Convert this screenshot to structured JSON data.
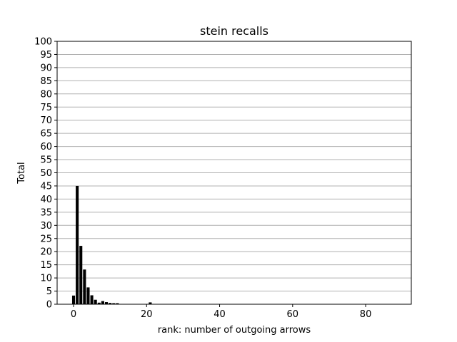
{
  "chart_data": {
    "type": "bar",
    "title": "stein recalls",
    "xlabel": "rank: number of outgoing arrows",
    "ylabel": "Total",
    "xlim": [
      -4.5,
      92.5
    ],
    "ylim": [
      0,
      100
    ],
    "xticks": [
      0,
      20,
      40,
      60,
      80
    ],
    "yticks": [
      0,
      5,
      10,
      15,
      20,
      25,
      30,
      35,
      40,
      45,
      50,
      55,
      60,
      65,
      70,
      75,
      80,
      85,
      90,
      95,
      100
    ],
    "grid": "horizontal",
    "bar_color": "#000000",
    "x": [
      0,
      1,
      2,
      3,
      4,
      5,
      6,
      7,
      8,
      9,
      10,
      11,
      12,
      21
    ],
    "values": [
      3.3,
      45,
      22.2,
      13.2,
      6.4,
      3.4,
      1.7,
      0.6,
      1.2,
      0.8,
      0.5,
      0.4,
      0.4,
      0.7
    ]
  }
}
